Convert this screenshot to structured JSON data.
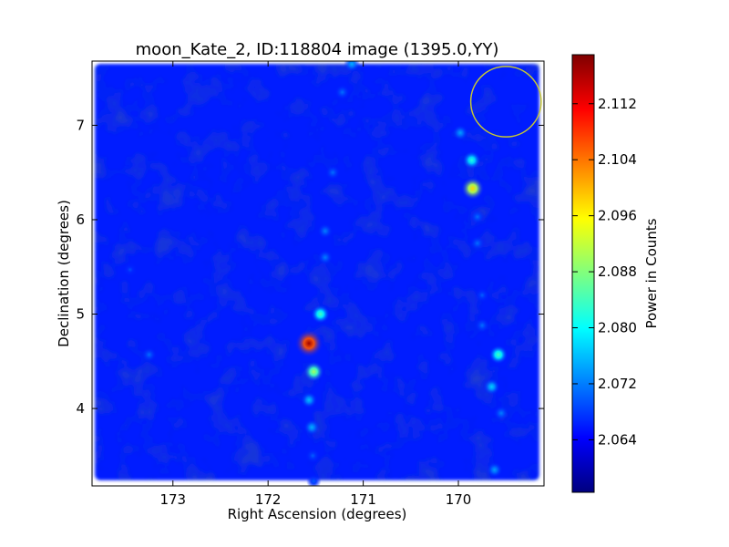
{
  "chart_data": {
    "type": "heatmap",
    "title": "moon_Kate_2, ID:118804 image (1395.0,YY)",
    "xlabel": "Right Ascension (degrees)",
    "ylabel": "Declination (degrees)",
    "xlim": [
      173.85,
      169.1
    ],
    "ylim": [
      3.18,
      7.68
    ],
    "x_ticks": [
      {
        "value": 173,
        "label": "173"
      },
      {
        "value": 172,
        "label": "172"
      },
      {
        "value": 171,
        "label": "171"
      },
      {
        "value": 170,
        "label": "170"
      }
    ],
    "y_ticks": [
      {
        "value": 4,
        "label": "4"
      },
      {
        "value": 5,
        "label": "5"
      },
      {
        "value": 6,
        "label": "6"
      },
      {
        "value": 7,
        "label": "7"
      }
    ],
    "colorbar": {
      "label": "Power in Counts",
      "colormap": "jet",
      "range": [
        2.0565,
        2.119
      ],
      "ticks": [
        {
          "value": 2.064,
          "label": "2.064"
        },
        {
          "value": 2.072,
          "label": "2.072"
        },
        {
          "value": 2.08,
          "label": "2.080"
        },
        {
          "value": 2.088,
          "label": "2.088"
        },
        {
          "value": 2.096,
          "label": "2.096"
        },
        {
          "value": 2.104,
          "label": "2.104"
        },
        {
          "value": 2.112,
          "label": "2.112"
        }
      ]
    },
    "background_level": 2.066,
    "image_extent": {
      "ra": [
        173.82,
        169.15
      ],
      "dec": [
        3.24,
        7.65
      ]
    },
    "sources": [
      {
        "ra": 171.57,
        "dec": 4.69,
        "power": 2.117
      },
      {
        "ra": 171.52,
        "dec": 4.39,
        "power": 2.09
      },
      {
        "ra": 171.45,
        "dec": 5.0,
        "power": 2.084
      },
      {
        "ra": 171.57,
        "dec": 4.09,
        "power": 2.076
      },
      {
        "ra": 171.54,
        "dec": 3.8,
        "power": 2.075
      },
      {
        "ra": 171.53,
        "dec": 3.5,
        "power": 2.07
      },
      {
        "ra": 171.52,
        "dec": 3.23,
        "power": 2.07
      },
      {
        "ra": 171.4,
        "dec": 5.6,
        "power": 2.072
      },
      {
        "ra": 171.4,
        "dec": 5.88,
        "power": 2.072
      },
      {
        "ra": 171.32,
        "dec": 6.5,
        "power": 2.071
      },
      {
        "ra": 171.22,
        "dec": 7.35,
        "power": 2.071
      },
      {
        "ra": 171.12,
        "dec": 7.65,
        "power": 2.075
      },
      {
        "ra": 169.85,
        "dec": 6.33,
        "power": 2.098
      },
      {
        "ra": 169.86,
        "dec": 6.63,
        "power": 2.082
      },
      {
        "ra": 169.98,
        "dec": 6.92,
        "power": 2.074
      },
      {
        "ra": 169.8,
        "dec": 6.03,
        "power": 2.071
      },
      {
        "ra": 169.8,
        "dec": 5.75,
        "power": 2.071
      },
      {
        "ra": 169.58,
        "dec": 4.57,
        "power": 2.084
      },
      {
        "ra": 169.65,
        "dec": 4.23,
        "power": 2.077
      },
      {
        "ra": 169.55,
        "dec": 3.95,
        "power": 2.072
      },
      {
        "ra": 169.62,
        "dec": 3.35,
        "power": 2.074
      },
      {
        "ra": 169.75,
        "dec": 5.2,
        "power": 2.07
      },
      {
        "ra": 169.75,
        "dec": 4.88,
        "power": 2.071
      },
      {
        "ra": 173.25,
        "dec": 4.57,
        "power": 2.071
      },
      {
        "ra": 173.45,
        "dec": 5.47,
        "power": 2.069
      }
    ],
    "annotation_circle": {
      "ra": 169.5,
      "dec": 7.25,
      "radius_deg": 0.37,
      "color": "#c8c832"
    }
  }
}
